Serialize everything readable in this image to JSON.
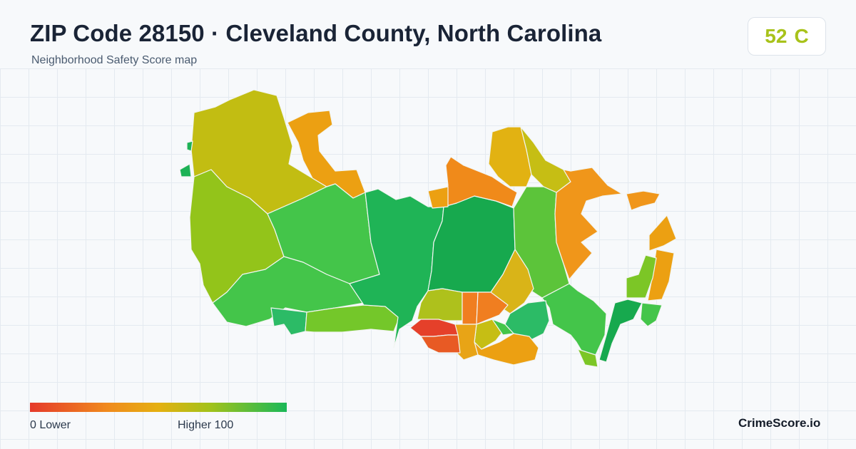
{
  "header": {
    "title": "ZIP Code 28150 · Cleveland County, North Carolina",
    "subtitle": "Neighborhood Safety Score map"
  },
  "score": {
    "value": "52",
    "grade": "C",
    "color": "#a8c21a"
  },
  "legend": {
    "min_label": "0  Lower",
    "max_label": "Higher  100",
    "min_value": 0,
    "max_value": 100,
    "low_color": "#e53a2a",
    "mid_color": "#e5b010",
    "high_color": "#1ab858"
  },
  "brand": "CrimeScore.io"
}
